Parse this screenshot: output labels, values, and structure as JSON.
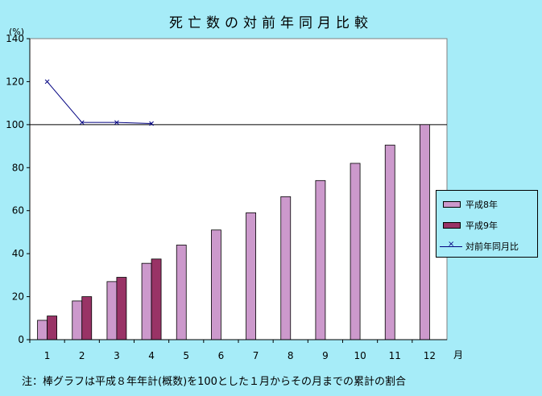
{
  "chart_data": {
    "type": "bar",
    "title": "死亡数の対前年同月比較",
    "ylabel": "(%)",
    "xlabel": "月",
    "categories": [
      "1",
      "2",
      "3",
      "4",
      "5",
      "6",
      "7",
      "8",
      "9",
      "10",
      "11",
      "12"
    ],
    "ylim": [
      0,
      140
    ],
    "yticks": [
      0,
      20,
      40,
      60,
      80,
      100,
      120,
      140
    ],
    "reference_line": 100,
    "series": [
      {
        "name": "平成8年",
        "type": "bar",
        "color": "#cc99cc",
        "values": [
          9,
          18,
          27,
          35.5,
          44,
          51,
          59,
          66.5,
          74,
          82,
          90.5,
          100
        ]
      },
      {
        "name": "平成9年",
        "type": "bar",
        "color": "#993366",
        "values": [
          11,
          20,
          29,
          37.5,
          null,
          null,
          null,
          null,
          null,
          null,
          null,
          null
        ]
      },
      {
        "name": "対前年同月比",
        "type": "line",
        "color": "#000080",
        "values": [
          120,
          101,
          101,
          100.5,
          null,
          null,
          null,
          null,
          null,
          null,
          null,
          null
        ]
      }
    ],
    "legend_position": "right"
  },
  "note": "注：棒グラフは平成８年年計(概数)を100とした１月からその月までの累計の割合"
}
